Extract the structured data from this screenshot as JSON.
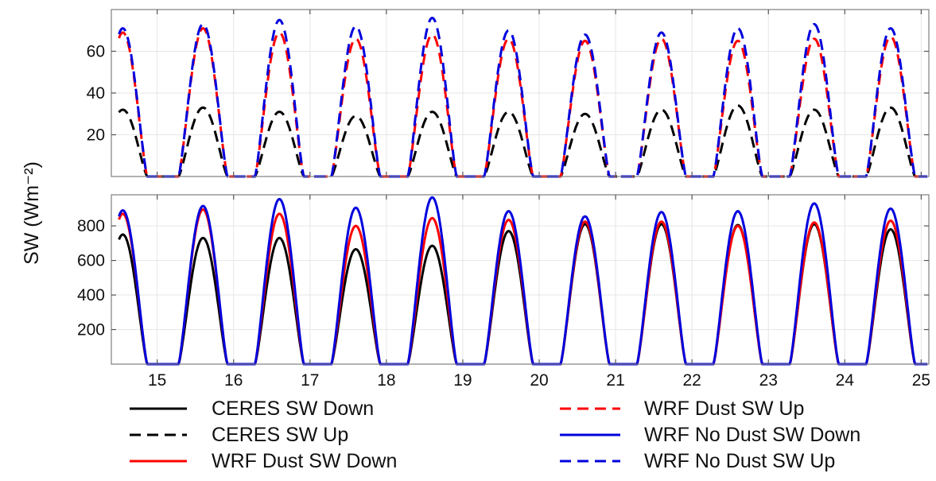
{
  "chart_data": {
    "type": "line",
    "ylabel": "SW (Wm⁻²)",
    "xlim": [
      14.4,
      25.1
    ],
    "x_ticks": [
      15,
      16,
      17,
      18,
      19,
      20,
      21,
      22,
      23,
      24,
      25
    ],
    "x_tick_labels": [
      "15",
      "16",
      "17",
      "18",
      "19",
      "20",
      "21",
      "22",
      "23",
      "24",
      "25"
    ],
    "grid": true,
    "legend_position": "bottom",
    "peak_days": [
      14.55,
      15.6,
      16.6,
      17.6,
      18.6,
      19.6,
      20.6,
      21.6,
      22.6,
      23.6,
      24.6
    ],
    "colors": {
      "ceres": "#000000",
      "wrf_dust": "#ff0000",
      "wrf_no_dust": "#0000dd"
    },
    "panels": [
      {
        "name": "SW Up",
        "ylim": [
          0,
          80
        ],
        "y_ticks": [
          20,
          40,
          60
        ],
        "y_tick_labels": [
          "20",
          "40",
          "60"
        ],
        "series": [
          {
            "name": "CERES SW Up",
            "color": "#000000",
            "dash": "dashed",
            "peaks": [
              32,
              33,
              31,
              29,
              31,
              31,
              30,
              32,
              34,
              32,
              33
            ]
          },
          {
            "name": "WRF Dust SW Up",
            "color": "#ff0000",
            "dash": "dashed",
            "peaks": [
              69,
              71,
              69,
              66,
              68,
              66,
              65,
              66,
              65,
              66,
              67
            ]
          },
          {
            "name": "WRF No Dust SW Up",
            "color": "#0000dd",
            "dash": "dashed",
            "peaks": [
              71,
              73,
              75,
              72,
              76,
              70,
              68,
              69,
              71,
              73,
              71
            ]
          }
        ]
      },
      {
        "name": "SW Down",
        "ylim": [
          0,
          980
        ],
        "y_ticks": [
          200,
          400,
          600,
          800
        ],
        "y_tick_labels": [
          "200",
          "400",
          "600",
          "800"
        ],
        "series": [
          {
            "name": "CERES SW Down",
            "color": "#000000",
            "dash": "solid",
            "peaks": [
              750,
              730,
              730,
              665,
              685,
              770,
              810,
              810,
              805,
              810,
              780
            ]
          },
          {
            "name": "WRF Dust SW Down",
            "color": "#ff0000",
            "dash": "solid",
            "peaks": [
              870,
              895,
              870,
              800,
              845,
              835,
              825,
              825,
              800,
              820,
              830
            ]
          },
          {
            "name": "WRF No Dust SW Down",
            "color": "#0000dd",
            "dash": "solid",
            "peaks": [
              890,
              915,
              955,
              905,
              965,
              885,
              855,
              880,
              885,
              930,
              900
            ]
          }
        ]
      }
    ],
    "legend": [
      {
        "label": "CERES SW Down",
        "color": "#000000",
        "dash": "solid"
      },
      {
        "label": "CERES SW Up",
        "color": "#000000",
        "dash": "dashed"
      },
      {
        "label": "WRF Dust SW Down",
        "color": "#ff0000",
        "dash": "solid"
      },
      {
        "label": "WRF Dust SW Up",
        "color": "#ff0000",
        "dash": "dashed"
      },
      {
        "label": "WRF No Dust SW Down",
        "color": "#0000dd",
        "dash": "solid"
      },
      {
        "label": "WRF No Dust SW Up",
        "color": "#0000dd",
        "dash": "dashed"
      }
    ]
  }
}
